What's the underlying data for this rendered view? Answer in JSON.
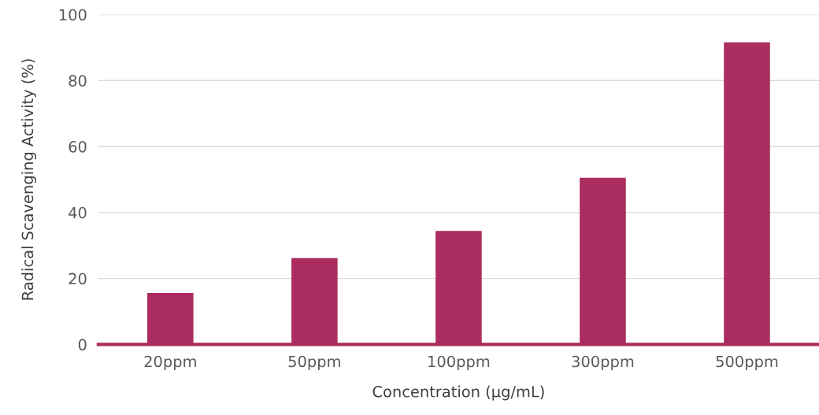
{
  "chart_data": {
    "type": "bar",
    "xlabel": "Concentration (μg/mL)",
    "ylabel": "Radical Scavenging Activity (%)",
    "categories": [
      "20ppm",
      "50ppm",
      "100ppm",
      "300ppm",
      "500ppm"
    ],
    "values": [
      15.6,
      26.2,
      34.4,
      50.5,
      91.6
    ],
    "color": "#ab2d5f",
    "ylim": [
      0,
      100
    ],
    "yticks": [
      0,
      20,
      40,
      60,
      80,
      100
    ],
    "grid": "y"
  }
}
